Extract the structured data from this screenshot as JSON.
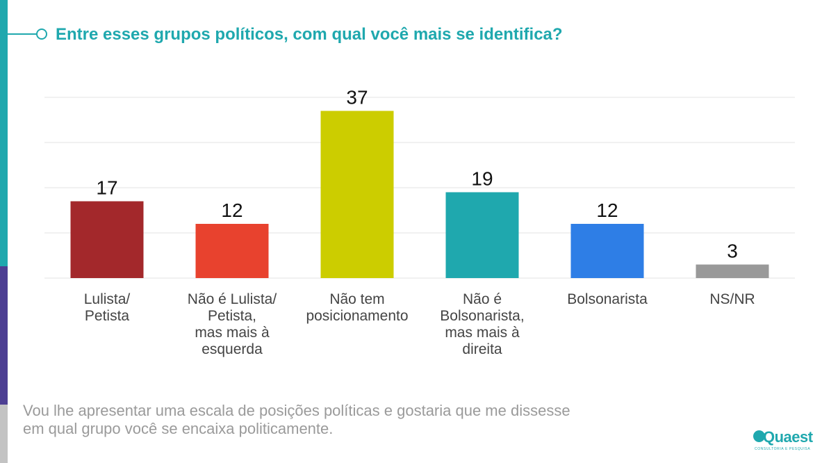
{
  "header": {
    "title": "Entre esses grupos políticos, com qual você mais se identifica?"
  },
  "chart_data": {
    "type": "bar",
    "title": "Entre esses grupos políticos, com qual você mais se identifica?",
    "categories": [
      [
        "Lulista/",
        "Petista"
      ],
      [
        "Não é Lulista/",
        "Petista,",
        "mas mais à",
        "esquerda"
      ],
      [
        "Não tem",
        "posicionamento"
      ],
      [
        "Não é",
        "Bolsonarista,",
        "mas mais à",
        "direita"
      ],
      [
        "Bolsonarista"
      ],
      [
        "NS/NR"
      ]
    ],
    "values": [
      17,
      12,
      37,
      19,
      12,
      3
    ],
    "colors": [
      "#a3282b",
      "#e8422e",
      "#cccd00",
      "#1fa8ae",
      "#2e7ee6",
      "#999999"
    ],
    "xlabel": "",
    "ylabel": "",
    "ylim": [
      0,
      40
    ],
    "grid": true,
    "legend": "none"
  },
  "footer": {
    "note": "Vou lhe apresentar uma escala de posições políticas e gostaria que me dissesse em qual grupo você se encaixa politicamente."
  },
  "brand": {
    "logo_text": "Quaest",
    "logo_tagline": "CONSULTORIA E PESQUISA",
    "accent_color": "#1fa8ae"
  }
}
